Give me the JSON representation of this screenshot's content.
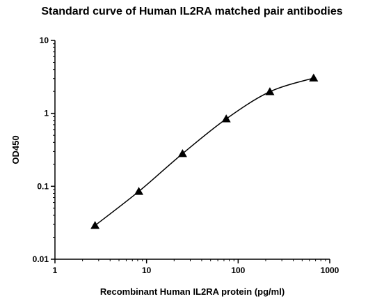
{
  "chart_data": {
    "type": "scatter",
    "title": "Standard curve of Human IL2RA matched pair antibodies",
    "xlabel": "Recombinant Human IL2RA protein (pg/ml)",
    "ylabel": "OD450",
    "x_scale": "log",
    "y_scale": "log",
    "xlim": [
      1,
      1000
    ],
    "ylim": [
      0.01,
      10
    ],
    "x_ticks": [
      1,
      10,
      100,
      1000
    ],
    "x_tick_labels": [
      "1",
      "10",
      "100",
      "1000"
    ],
    "y_ticks": [
      0.01,
      0.1,
      1,
      10
    ],
    "y_tick_labels": [
      "0.01",
      "0.1",
      "1",
      "10"
    ],
    "grid": false,
    "marker": "triangle",
    "color": "#000000",
    "fit_line": true,
    "series": [
      {
        "x": [
          2.74,
          8.23,
          24.7,
          74.1,
          222,
          667
        ],
        "y": [
          0.029,
          0.085,
          0.28,
          0.84,
          1.98,
          3.05
        ]
      }
    ]
  }
}
